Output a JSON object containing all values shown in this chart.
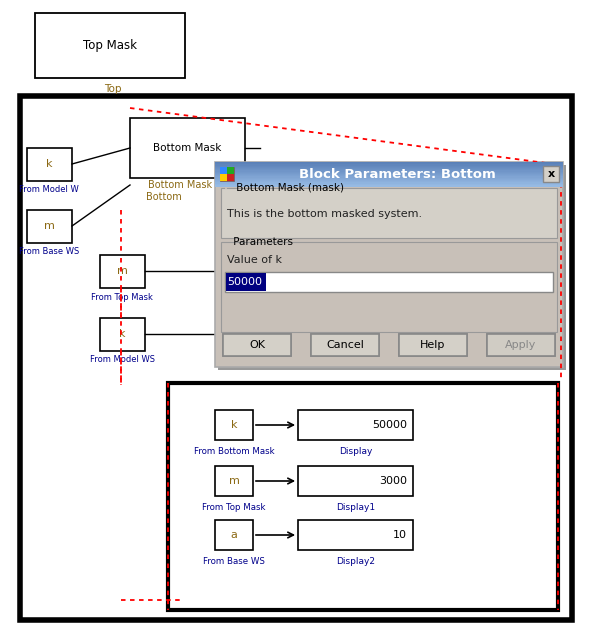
{
  "bg_color": "#ffffff",
  "dialog_bg": "#c8c0b8",
  "dialog_header_start": "#6688bb",
  "dialog_header_end": "#aabbdd",
  "dialog_title": "Block Parameters: Bottom",
  "dialog_section1": "Bottom Mask (mask)",
  "dialog_desc": "This is the bottom masked system.",
  "dialog_section2": "Parameters",
  "dialog_param_label": "Value of k",
  "dialog_param_value": "50000",
  "btn_ok": "OK",
  "btn_cancel": "Cancel",
  "btn_help": "Help",
  "btn_apply": "Apply",
  "top_mask_label": "Top Mask",
  "top_label": "Top",
  "bottom_mask_label": "Bottom Mask",
  "bottom_sub_label": "Bottom",
  "text_gold": "#8B6914",
  "text_blue": "#00008B",
  "text_dark": "#111111",
  "red_dot": "#dd0000"
}
